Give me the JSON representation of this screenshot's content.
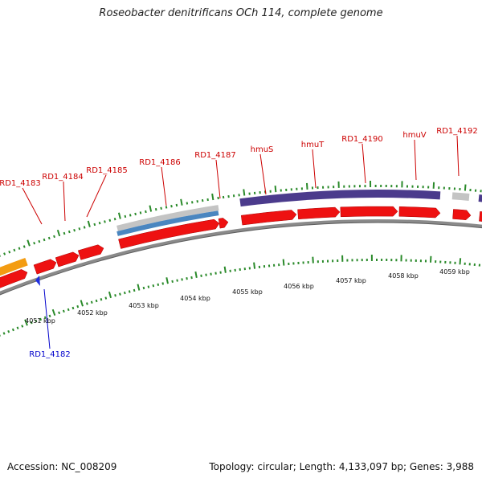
{
  "title": "Roseobacter denitrificans OCh 114, complete genome",
  "footer": {
    "accession": "Accession: NC_008209",
    "summary": "Topology: circular; Length: 4,133,097 bp; Genes: 3,988"
  },
  "scale_labels": [
    "4051 kbp",
    "4052 kbp",
    "4053 kbp",
    "4054 kbp",
    "4055 kbp",
    "4056 kbp",
    "4057 kbp",
    "4058 kbp",
    "4059 kbp"
  ],
  "gene_labels": {
    "forward": [
      "RD1_4183",
      "RD1_4184",
      "RD1_4185",
      "RD1_4186",
      "RD1_4187",
      "hmuS",
      "hmuT",
      "RD1_4190",
      "hmuV",
      "RD1_4192"
    ],
    "reverse": [
      "RD1_4182"
    ]
  },
  "colors": {
    "forward_label": "#cc0000",
    "reverse_label": "#0000cc",
    "tick": "#2a8a2a",
    "backbone": "#8a8a8a",
    "cds": "#ee1111",
    "orange_feature": "#f39c12",
    "purple_feature": "#4b3b8c",
    "grey_feature": "#c4c4c4",
    "blue_feature": "#4a86c0",
    "reverse_cds": "#1f2ee0"
  }
}
